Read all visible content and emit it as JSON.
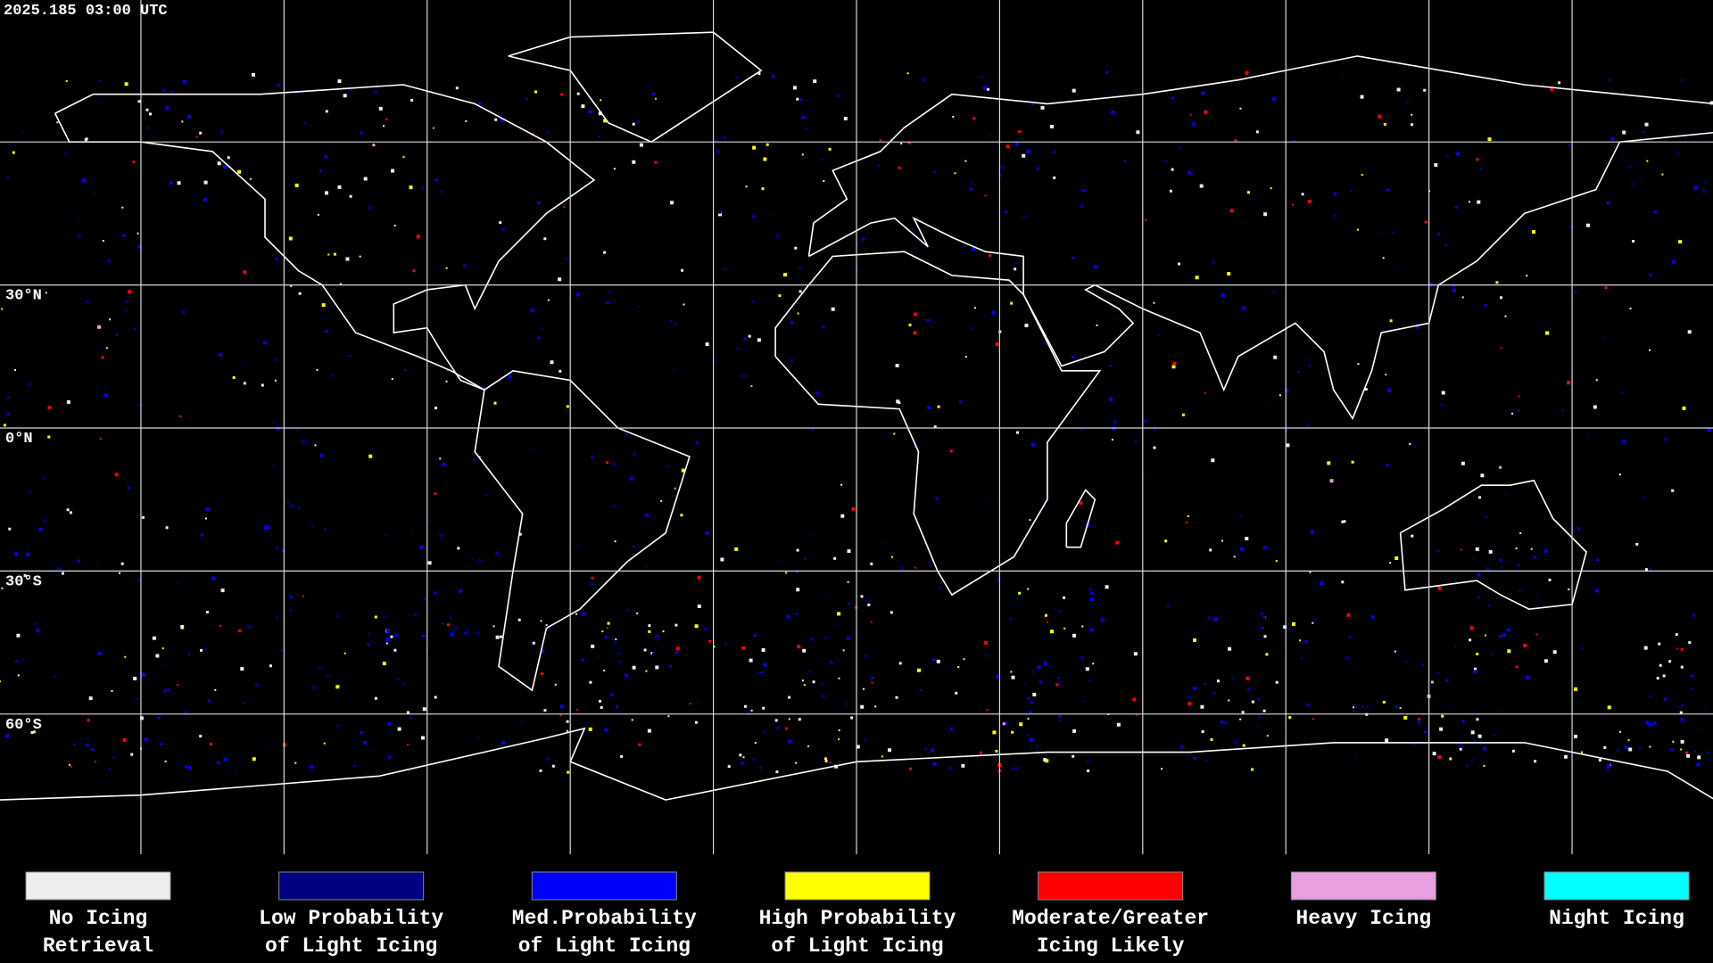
{
  "timestamp": "2025.185 03:00 UTC",
  "latitude_labels": [
    "30°N",
    "0°N",
    "30°S",
    "60°S"
  ],
  "legend": [
    {
      "label_lines": [
        "No Icing",
        "Retrieval"
      ],
      "color": "#eeeeee"
    },
    {
      "label_lines": [
        "Low Probability",
        "of Light Icing"
      ],
      "color": "#000080"
    },
    {
      "label_lines": [
        "Med.Probability",
        "of Light Icing"
      ],
      "color": "#0000ff"
    },
    {
      "label_lines": [
        "High Probability",
        "of Light Icing"
      ],
      "color": "#ffff00"
    },
    {
      "label_lines": [
        "Moderate/Greater",
        "Icing Likely"
      ],
      "color": "#ff0000"
    },
    {
      "label_lines": [
        "Heavy Icing"
      ],
      "color": "#e8a0e0"
    },
    {
      "label_lines": [
        "Night Icing"
      ],
      "color": "#00ffff"
    }
  ]
}
